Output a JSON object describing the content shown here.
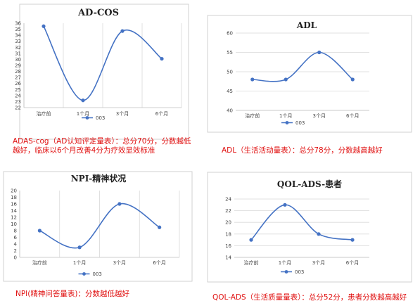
{
  "chart_data": [
    {
      "type": "line",
      "title": "AD-COS",
      "categories": [
        "治疗前",
        "1个月",
        "3个月",
        "6个月"
      ],
      "series": [
        {
          "name": "003",
          "values": [
            35.5,
            23.2,
            34.7,
            30.1
          ]
        }
      ],
      "ylim": [
        22,
        36
      ],
      "ytick_step": 1,
      "grid": "vertical",
      "legend": "bottom",
      "color": "#4472c4",
      "caption_lines": [
        "ADAS-cog（AD认知评定量表）：总分70分，分数越低",
        "越好，临床以6个月改善4分为疗效显效标准"
      ]
    },
    {
      "type": "line",
      "title": "ADL",
      "categories": [
        "治疗前",
        "1个月",
        "3个月",
        "6个月"
      ],
      "series": [
        {
          "name": "003",
          "values": [
            48,
            48,
            55,
            48
          ]
        }
      ],
      "ylim": [
        40,
        60
      ],
      "ytick_step": 5,
      "grid": "horizontal",
      "legend": "bottom",
      "color": "#4472c4",
      "caption_lines": [
        "ADL（生活活动量表）：总分78分，分数越高越好"
      ]
    },
    {
      "type": "line",
      "title": "NPI-精神状况",
      "categories": [
        "治疗前",
        "1个月",
        "3个月",
        "6个月"
      ],
      "series": [
        {
          "name": "003",
          "values": [
            8,
            3,
            16,
            9
          ]
        }
      ],
      "ylim": [
        0,
        20
      ],
      "ytick_step": 2,
      "grid": "vertical",
      "legend": "bottom",
      "color": "#4472c4",
      "caption_lines": [
        "NPI(精神问答量表)：分数越低越好"
      ]
    },
    {
      "type": "line",
      "title": "QOL-ADS-患者",
      "categories": [
        "治疗前",
        "1个月",
        "3个月",
        "6个月"
      ],
      "series": [
        {
          "name": "003",
          "values": [
            17,
            23,
            18,
            17
          ]
        }
      ],
      "ylim": [
        14,
        24
      ],
      "ytick_step": 2,
      "grid": "horizontal",
      "legend": "bottom",
      "color": "#4472c4",
      "caption_lines": [
        "QOL-ADS（生活质量量表）：总分52分，患者分数越高越好"
      ]
    }
  ]
}
